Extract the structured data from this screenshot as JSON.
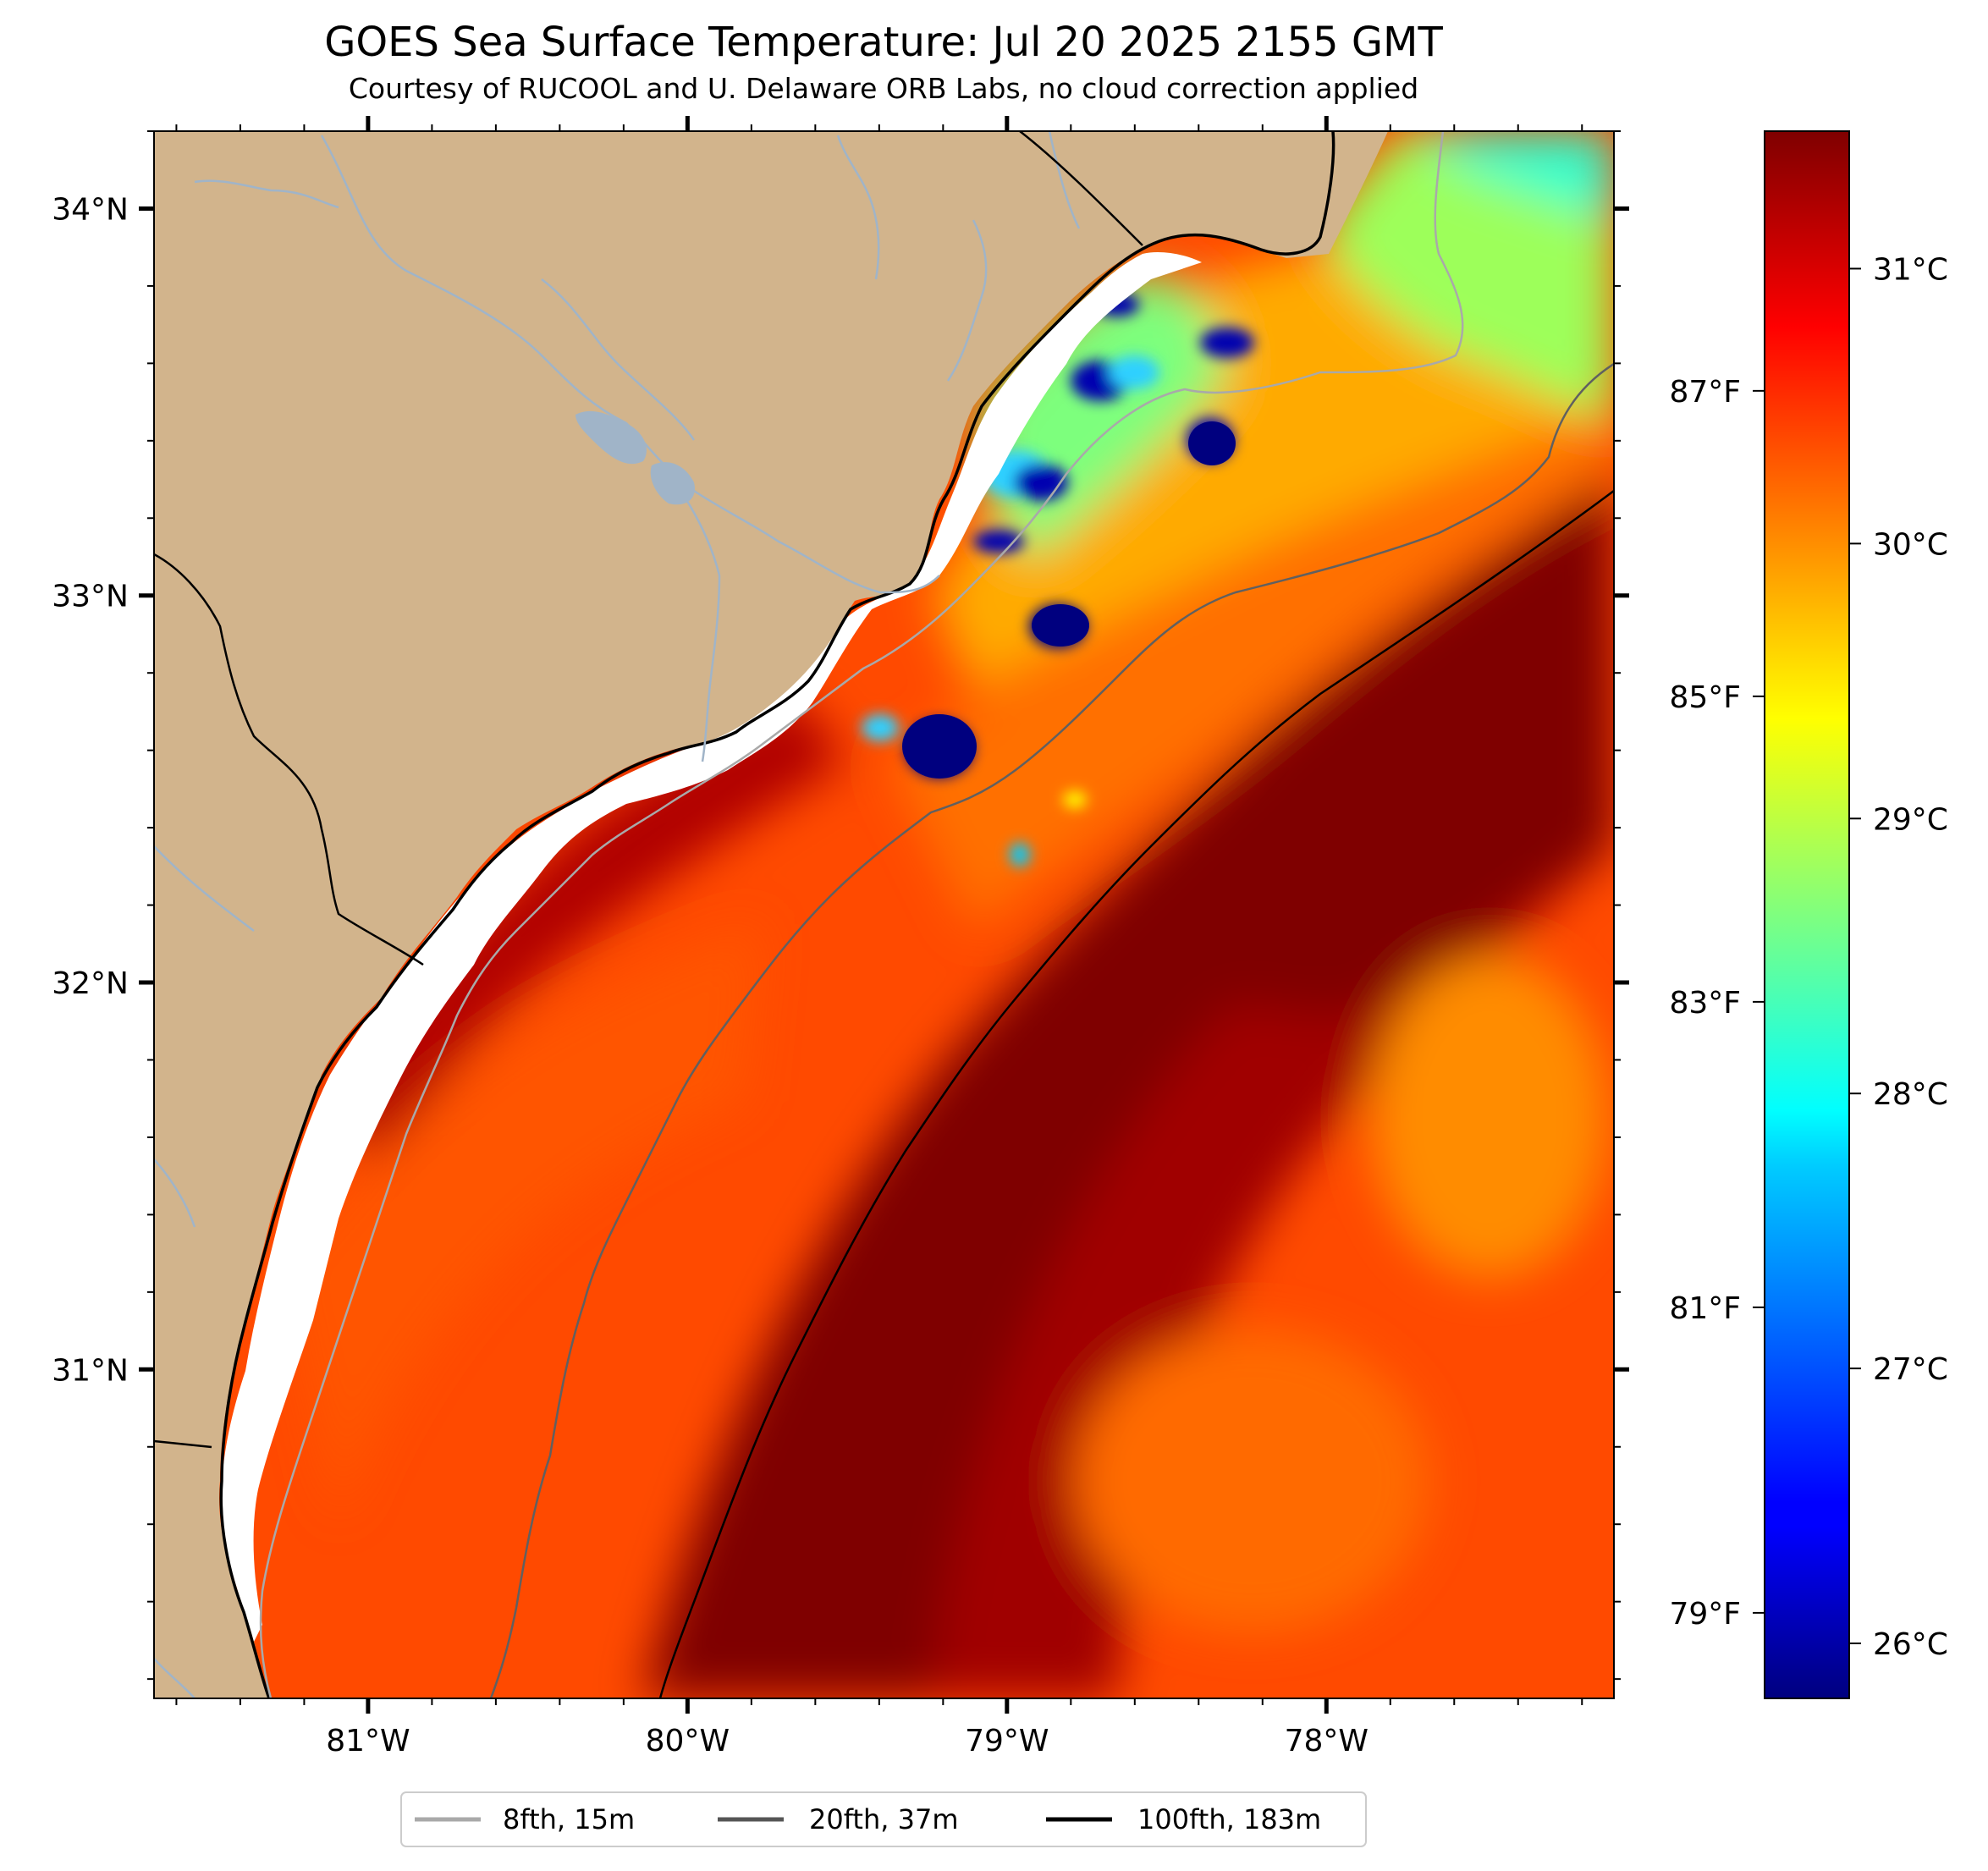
{
  "title": "GOES Sea Surface Temperature: Jul 20 2025 2155 GMT",
  "subtitle": "Courtesy of RUCOOL and U. Delaware ORB Labs, no cloud correction applied",
  "map": {
    "lon_range": [
      -81.67,
      -77.1
    ],
    "lat_range": [
      30.15,
      34.2
    ],
    "lon_ticks": [
      {
        "value": -81,
        "label": "81°W"
      },
      {
        "value": -80,
        "label": "80°W"
      },
      {
        "value": -79,
        "label": "79°W"
      },
      {
        "value": -78,
        "label": "78°W"
      }
    ],
    "lat_ticks": [
      {
        "value": 34,
        "label": "34°N"
      },
      {
        "value": 33,
        "label": "33°N"
      },
      {
        "value": 32,
        "label": "32°N"
      },
      {
        "value": 31,
        "label": "31°N"
      }
    ],
    "land_color": "#d2b48c",
    "river_color": "#a0b4c8"
  },
  "colorbar": {
    "range_c": [
      25.8,
      31.5
    ],
    "celsius_ticks": [
      {
        "value": 31,
        "label": "31°C"
      },
      {
        "value": 30,
        "label": "30°C"
      },
      {
        "value": 29,
        "label": "29°C"
      },
      {
        "value": 28,
        "label": "28°C"
      },
      {
        "value": 27,
        "label": "27°C"
      },
      {
        "value": 26,
        "label": "26°C"
      }
    ],
    "fahrenheit_ticks": [
      {
        "value": 87,
        "label": "87°F"
      },
      {
        "value": 85,
        "label": "85°F"
      },
      {
        "value": 83,
        "label": "83°F"
      },
      {
        "value": 81,
        "label": "81°F"
      },
      {
        "value": 79,
        "label": "79°F"
      }
    ],
    "colormap": "jet"
  },
  "legend": {
    "items": [
      {
        "label": "8fth, 15m",
        "color": "#a9a9a9"
      },
      {
        "label": "20fth, 37m",
        "color": "#555555"
      },
      {
        "label": "100fth, 183m",
        "color": "#000000"
      }
    ]
  }
}
